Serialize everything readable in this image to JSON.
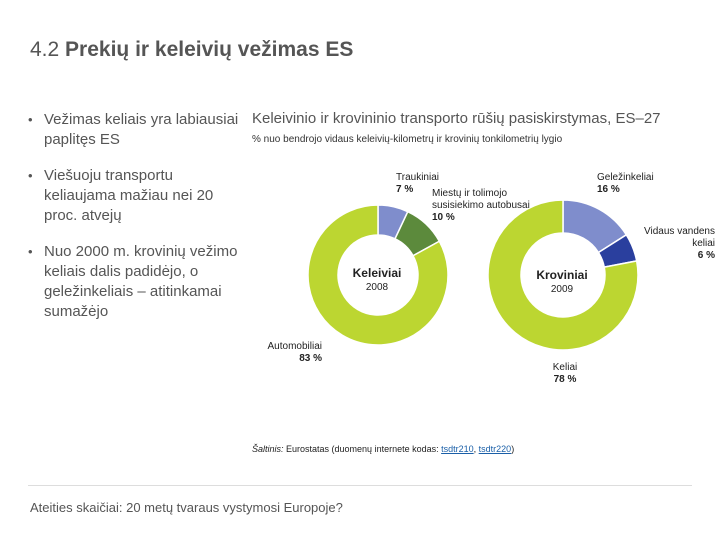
{
  "slide": {
    "title_number": "4.2",
    "title_text": "Prekių ir keleivių vežimas ES",
    "bullets": [
      "Vežimas keliais yra labiausiai paplitęs ES",
      "Viešuoju transportu keliaujama mažiau nei 20 proc. atvejų",
      "Nuo 2000 m. krovinių vežimo keliais dalis padidėjo, o geležinkeliais – atitinkamai sumažėjo"
    ],
    "source_prefix": "Šaltinis:",
    "source_text": " Eurostatas (duomenų internete kodas: ",
    "source_link1": "tsdtr210",
    "source_sep": ", ",
    "source_link2": "tsdtr220",
    "source_suffix": ")",
    "footer": "Ateities skaičiai: 20 metų tvaraus vystymosi Europoje?"
  },
  "chart_data": {
    "type": "pie",
    "title": "Keleivinio ir krovininio transporto rūšių pasiskirstymas, ES–27",
    "subtitle": "% nuo bendrojo vidaus keleivių-kilometrų ir krovinių tonkilometrių lygio",
    "colors": {
      "rail": "#7f8dcc",
      "bus": "#5c8a3c",
      "road": "#bcd631",
      "waterway": "#2a3f9e"
    },
    "charts": [
      {
        "name": "Keleiviai",
        "year": "2008",
        "slices": [
          {
            "label": "Traukiniai",
            "value": 7,
            "value_label": "7 %",
            "color_key": "rail"
          },
          {
            "label": "Miestų ir tolimojo susisiekimo autobusai",
            "value": 10,
            "value_label": "10 %",
            "color_key": "bus"
          },
          {
            "label": "Automobiliai",
            "value": 83,
            "value_label": "83 %",
            "color_key": "road"
          }
        ]
      },
      {
        "name": "Kroviniai",
        "year": "2009",
        "slices": [
          {
            "label": "Geležinkeliai",
            "value": 16,
            "value_label": "16 %",
            "color_key": "rail"
          },
          {
            "label": "Vidaus vandens keliai",
            "value": 6,
            "value_label": "6 %",
            "color_key": "waterway"
          },
          {
            "label": "Keliai",
            "value": 78,
            "value_label": "78 %",
            "color_key": "road"
          }
        ]
      }
    ]
  }
}
